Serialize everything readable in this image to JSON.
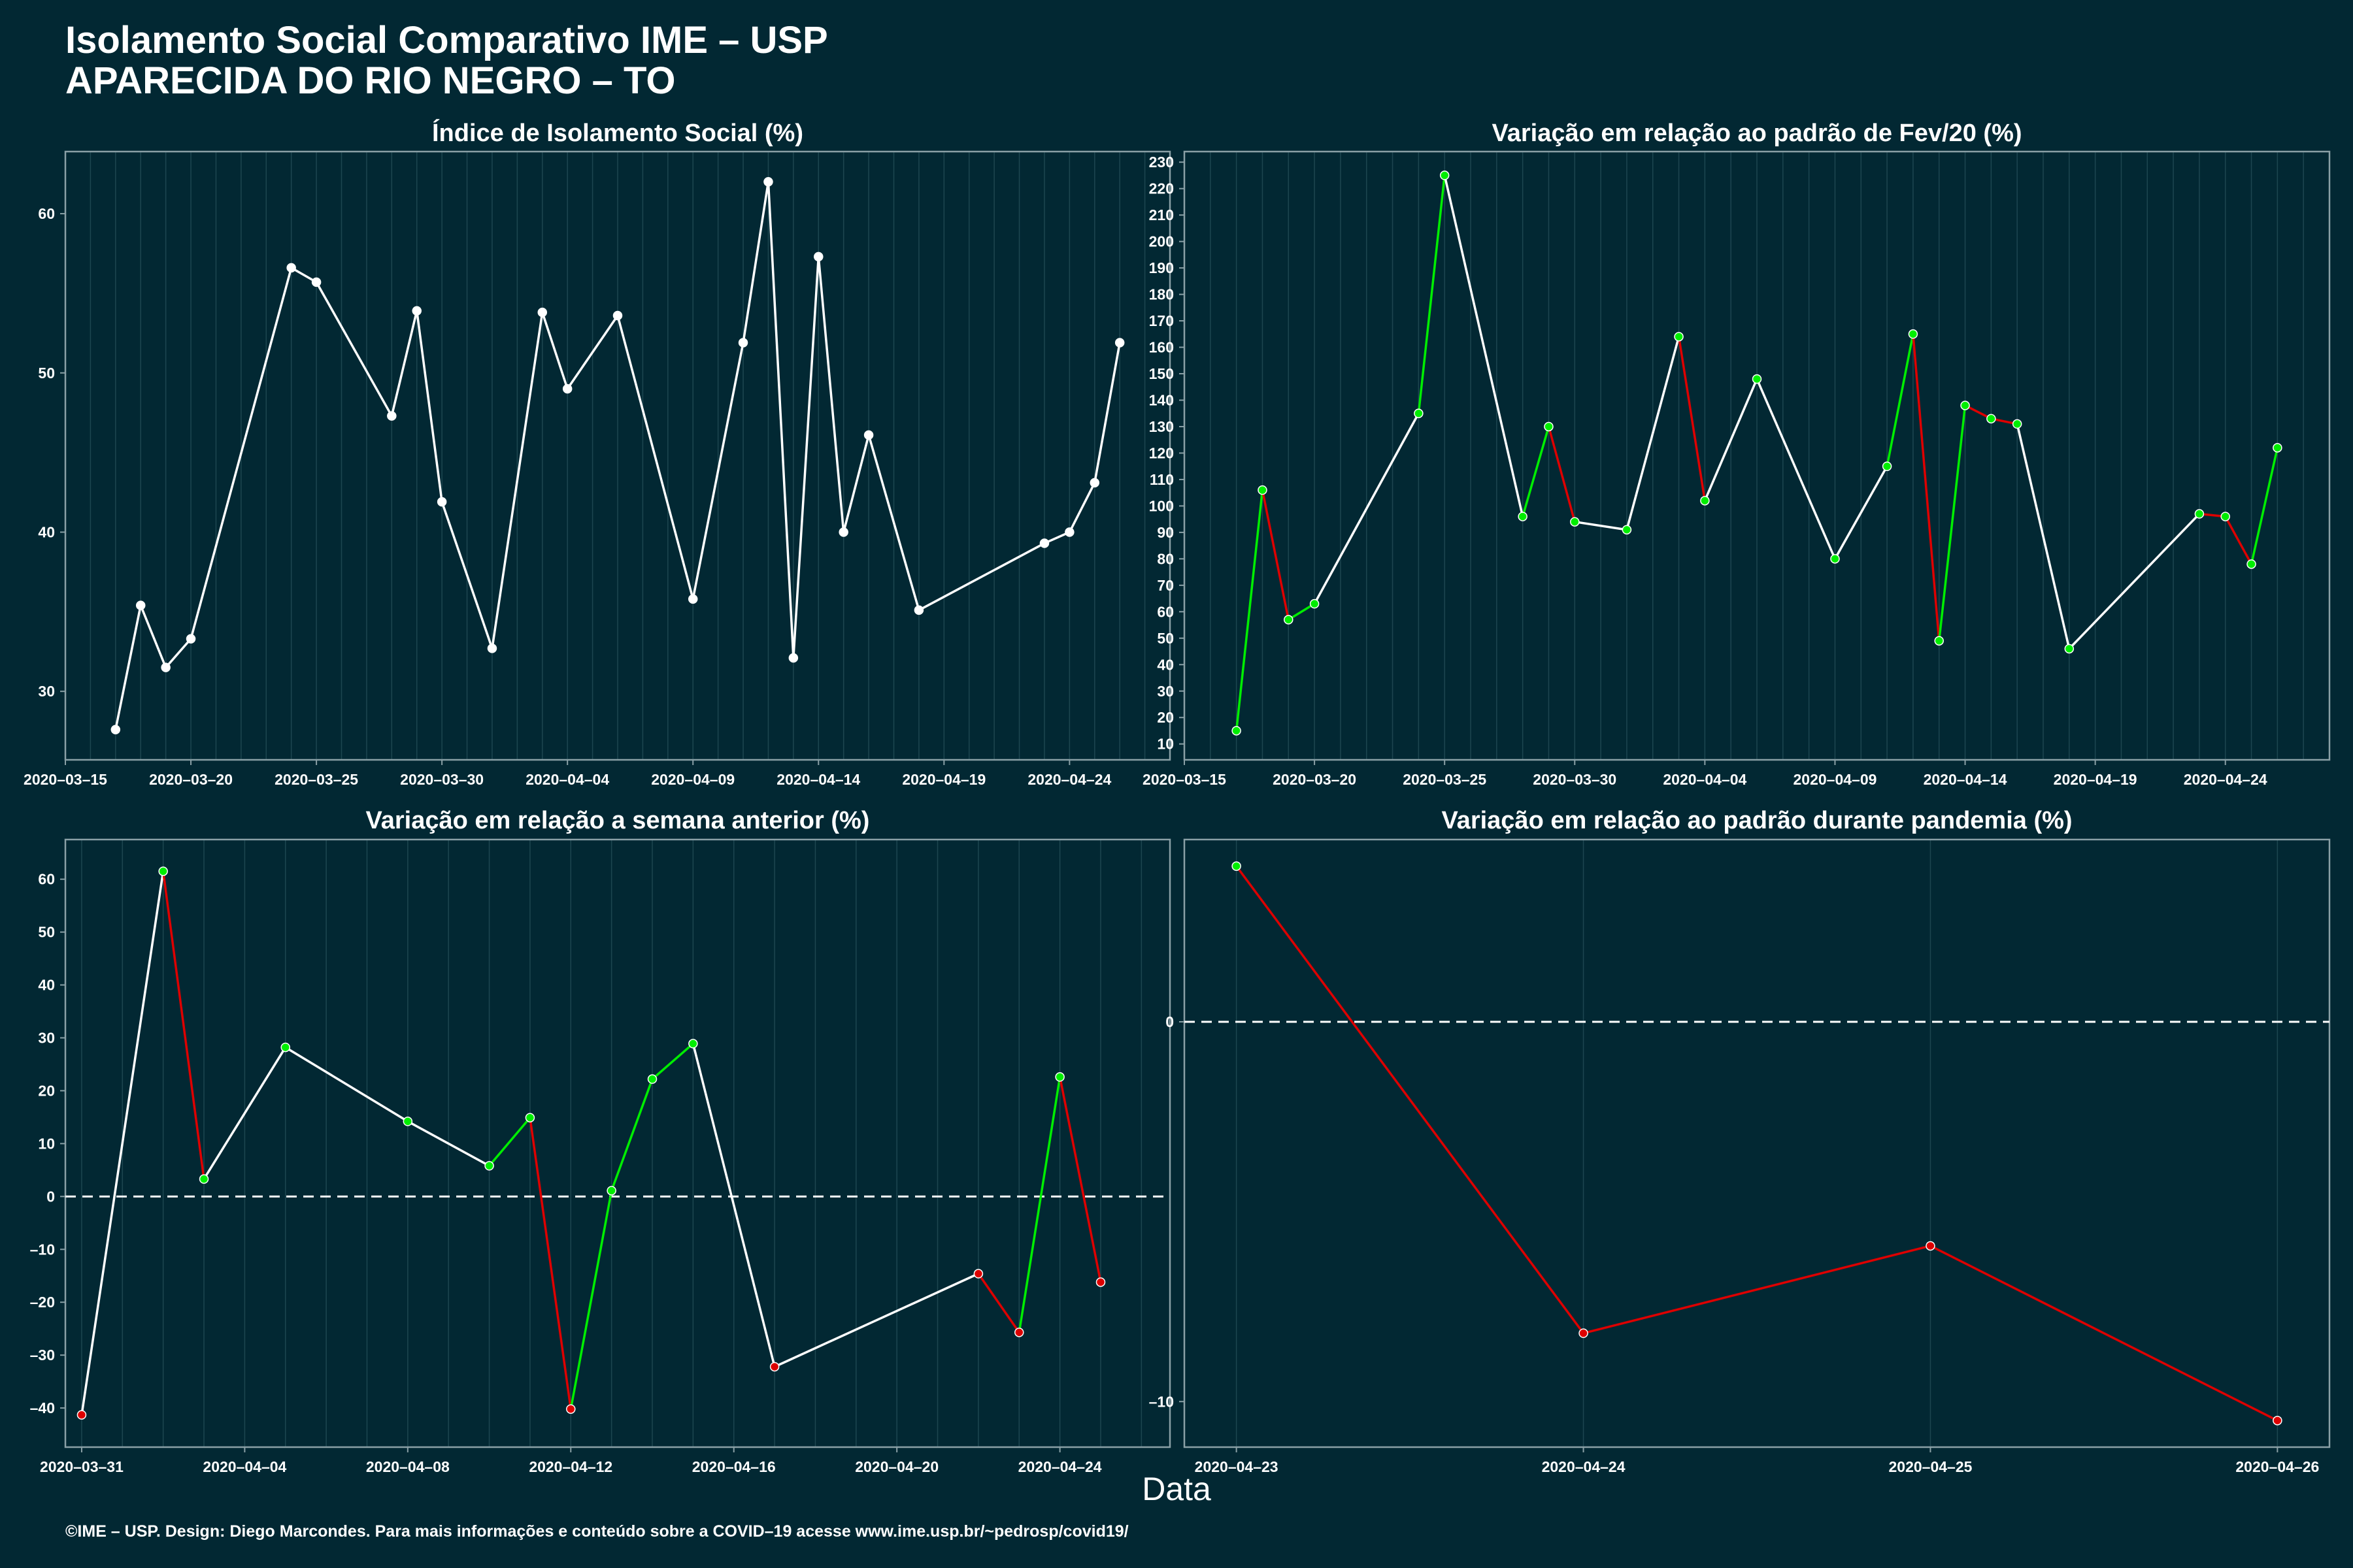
{
  "header": {
    "title": "Isolamento Social Comparativo IME – USP",
    "subtitle": "APARECIDA DO RIO NEGRO – TO"
  },
  "xlabel": "Data",
  "footer": "©IME – USP. Design: Diego Marcondes. Para mais informações e conteúdo sobre a COVID–19 acesse www.ime.usp.br/~pedrosp/covid19/",
  "colors": {
    "background": "#022833",
    "up": "#00ee00",
    "down": "#dd0000",
    "neutral": "#ffffff",
    "grid": "#1d4650"
  },
  "chart_data": [
    {
      "id": "isolamento",
      "type": "line",
      "title": "Índice de Isolamento Social (%)",
      "x": [
        "2020-03-17",
        "2020-03-18",
        "2020-03-19",
        "2020-03-20",
        "2020-03-24",
        "2020-03-25",
        "2020-03-28",
        "2020-03-29",
        "2020-03-30",
        "2020-04-01",
        "2020-04-03",
        "2020-04-04",
        "2020-04-06",
        "2020-04-09",
        "2020-04-11",
        "2020-04-12",
        "2020-04-13",
        "2020-04-14",
        "2020-04-15",
        "2020-04-16",
        "2020-04-18",
        "2020-04-23",
        "2020-04-24",
        "2020-04-25",
        "2020-04-26"
      ],
      "y": [
        27.6,
        35.4,
        31.5,
        33.3,
        56.6,
        55.7,
        47.3,
        53.9,
        41.9,
        32.7,
        53.8,
        49.0,
        53.6,
        35.8,
        51.9,
        62.0,
        32.1,
        57.3,
        40.0,
        46.1,
        35.1,
        39.3,
        40.0,
        43.1,
        51.9
      ],
      "xlim": [
        "2020-03-15",
        "2020-04-28"
      ],
      "ylim": [
        25.7,
        63.9
      ],
      "xticks": [
        "2020-03-15",
        "2020-03-20",
        "2020-03-25",
        "2020-03-30",
        "2020-04-04",
        "2020-04-09",
        "2020-04-14",
        "2020-04-19",
        "2020-04-24"
      ],
      "yticks": [
        30,
        40,
        50,
        60
      ],
      "grid": true,
      "zero_line": false
    },
    {
      "id": "fev",
      "type": "line",
      "title": "Variação em relação ao padrão de Fev/20 (%)",
      "x": [
        "2020-03-17",
        "2020-03-18",
        "2020-03-19",
        "2020-03-20",
        "2020-03-24",
        "2020-03-25",
        "2020-03-28",
        "2020-03-29",
        "2020-03-30",
        "2020-04-01",
        "2020-04-03",
        "2020-04-04",
        "2020-04-06",
        "2020-04-09",
        "2020-04-11",
        "2020-04-12",
        "2020-04-13",
        "2020-04-14",
        "2020-04-15",
        "2020-04-16",
        "2020-04-18",
        "2020-04-23",
        "2020-04-24",
        "2020-04-25",
        "2020-04-26"
      ],
      "y": [
        15,
        106,
        57,
        63,
        135,
        225,
        96,
        130,
        94,
        91,
        164,
        102,
        148,
        80,
        115,
        165,
        49,
        138,
        133,
        131,
        46,
        97,
        96,
        78,
        122
      ],
      "xlim": [
        "2020-03-15",
        "2020-04-28"
      ],
      "ylim": [
        4,
        234
      ],
      "xticks": [
        "2020-03-15",
        "2020-03-20",
        "2020-03-25",
        "2020-03-30",
        "2020-04-04",
        "2020-04-09",
        "2020-04-14",
        "2020-04-19",
        "2020-04-24"
      ],
      "yticks": [
        10,
        20,
        30,
        40,
        50,
        60,
        70,
        80,
        90,
        100,
        110,
        120,
        130,
        140,
        150,
        160,
        170,
        180,
        190,
        200,
        210,
        220,
        230
      ],
      "grid": true,
      "zero_line": false
    },
    {
      "id": "semana",
      "type": "line",
      "title": "Variação em relação a semana anterior (%)",
      "x": [
        "2020-03-31",
        "2020-04-02",
        "2020-04-03",
        "2020-04-05",
        "2020-04-08",
        "2020-04-10",
        "2020-04-11",
        "2020-04-12",
        "2020-04-13",
        "2020-04-14",
        "2020-04-15",
        "2020-04-17",
        "2020-04-22",
        "2020-04-23",
        "2020-04-24",
        "2020-04-25"
      ],
      "y": [
        -41.3,
        61.5,
        3.3,
        28.2,
        14.2,
        5.8,
        14.9,
        -40.2,
        1.1,
        22.2,
        28.9,
        -32.2,
        -14.6,
        -25.7,
        22.6,
        -16.2
      ],
      "xlim": [
        "2020-03-30.6",
        "2020-04-26.7"
      ],
      "ylim": [
        -47.4,
        67.5
      ],
      "xticks": [
        "2020-03-31",
        "2020-04-04",
        "2020-04-08",
        "2020-04-12",
        "2020-04-16",
        "2020-04-20",
        "2020-04-24"
      ],
      "yticks": [
        -40,
        -30,
        -20,
        -10,
        0,
        10,
        20,
        30,
        40,
        50,
        60
      ],
      "grid": true,
      "zero_line": true
    },
    {
      "id": "pandemia",
      "type": "line",
      "title": "Variação em relação ao padrão durante pandemia (%)",
      "x": [
        "2020-04-23",
        "2020-04-24",
        "2020-04-25",
        "2020-04-26"
      ],
      "y": [
        4.1,
        -8.2,
        -5.9,
        -10.5
      ],
      "xlim": [
        "2020-04-22.85",
        "2020-04-26.15"
      ],
      "ylim": [
        -11.2,
        4.8
      ],
      "xticks": [
        "2020-04-23",
        "2020-04-24",
        "2020-04-25",
        "2020-04-26"
      ],
      "yticks": [
        -10,
        0
      ],
      "grid": true,
      "zero_line": true
    }
  ]
}
